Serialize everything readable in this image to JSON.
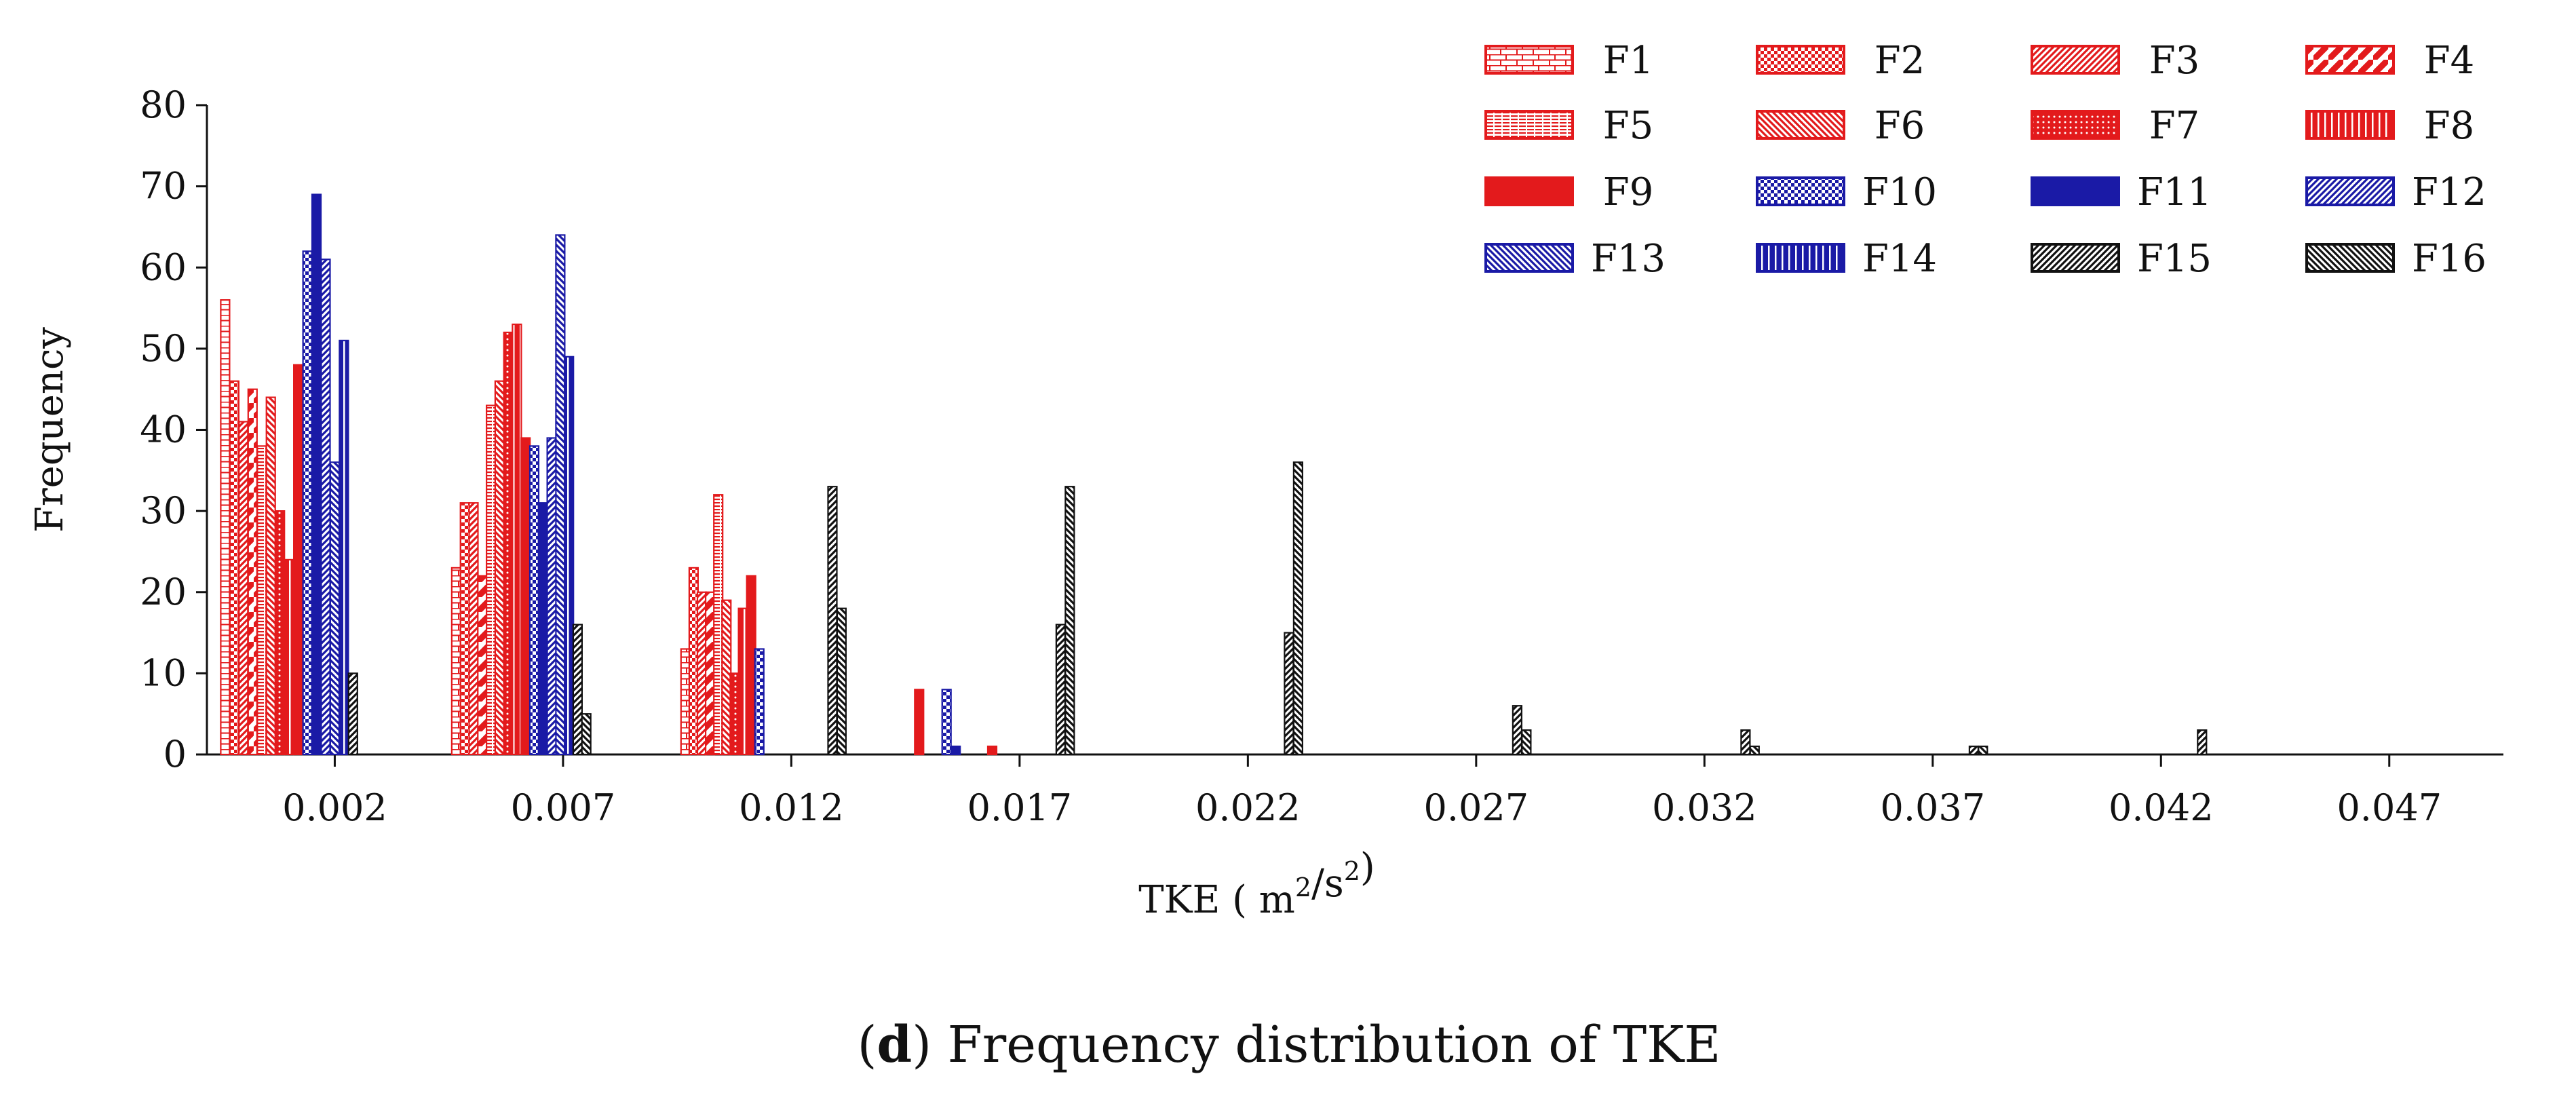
{
  "chart_data": {
    "type": "bar",
    "title": "",
    "caption": {
      "letter": "d",
      "text": "Frequency distribution of TKE"
    },
    "xlabel": {
      "prefix": "TKE ( m",
      "sup1": "2",
      "mid": "/s",
      "sup2": "2",
      "suffix": ")"
    },
    "ylabel": "Frequency",
    "xlim": [
      -0.0008,
      0.0495
    ],
    "ylim": [
      0,
      80
    ],
    "yticks": [
      0,
      10,
      20,
      30,
      40,
      50,
      60,
      70,
      80
    ],
    "xticks": [
      0.002,
      0.007,
      0.012,
      0.017,
      0.022,
      0.027,
      0.032,
      0.037,
      0.042,
      0.047
    ],
    "xtick_labels": [
      "0.002",
      "0.007",
      "0.012",
      "0.017",
      "0.022",
      "0.027",
      "0.032",
      "0.037",
      "0.042",
      "0.047"
    ],
    "legend": {
      "placement": "top-right",
      "columns": 4
    },
    "colors": {
      "red": "#e31a1c",
      "blue": "#1a1aa6",
      "black": "#111111"
    },
    "series": [
      {
        "name": "F1",
        "color": "red",
        "pattern": "brick",
        "x": [
          -0.0004,
          0.00466,
          0.00968
        ],
        "values": [
          56,
          23,
          13
        ]
      },
      {
        "name": "F2",
        "color": "red",
        "pattern": "checker",
        "x": [
          -0.0002,
          0.00485,
          0.00986
        ],
        "values": [
          46,
          31,
          23
        ]
      },
      {
        "name": "F3",
        "color": "red",
        "pattern": "diagfine",
        "x": [
          0.0,
          0.00504,
          0.01004
        ],
        "values": [
          41,
          31,
          20
        ]
      },
      {
        "name": "F4",
        "color": "red",
        "pattern": "diagwide",
        "x": [
          0.0002,
          0.00523,
          0.01022
        ],
        "values": [
          45,
          22,
          20
        ]
      },
      {
        "name": "F5",
        "color": "red",
        "pattern": "grid",
        "x": [
          0.0004,
          0.00542,
          0.0104
        ],
        "values": [
          38,
          43,
          32
        ]
      },
      {
        "name": "F6",
        "color": "red",
        "pattern": "backdiag",
        "x": [
          0.0006,
          0.00561,
          0.01058
        ],
        "values": [
          44,
          46,
          19
        ]
      },
      {
        "name": "F7",
        "color": "red",
        "pattern": "dots",
        "x": [
          0.0008,
          0.0058,
          0.01076
        ],
        "values": [
          30,
          52,
          10
        ]
      },
      {
        "name": "F8",
        "color": "red",
        "pattern": "vstripes",
        "x": [
          0.001,
          0.00599,
          0.01094
        ],
        "values": [
          24,
          53,
          18
        ]
      },
      {
        "name": "F9",
        "color": "red",
        "pattern": "hstripes",
        "x": [
          0.0012,
          0.00618,
          0.01112,
          0.0148,
          0.0164
        ],
        "values": [
          48,
          39,
          22,
          8,
          1
        ]
      },
      {
        "name": "F10",
        "color": "blue",
        "pattern": "checker",
        "x": [
          0.0014,
          0.00637,
          0.0113,
          0.0154
        ],
        "values": [
          62,
          38,
          13,
          8
        ]
      },
      {
        "name": "F11",
        "color": "blue",
        "pattern": "hstripes",
        "x": [
          0.0016,
          0.00656,
          0.0156
        ],
        "values": [
          69,
          31,
          1
        ]
      },
      {
        "name": "F12",
        "color": "blue",
        "pattern": "diagfine",
        "x": [
          0.0018,
          0.00675
        ],
        "values": [
          61,
          39
        ]
      },
      {
        "name": "F13",
        "color": "blue",
        "pattern": "backdiag",
        "x": [
          0.002,
          0.00694
        ],
        "values": [
          36,
          64
        ]
      },
      {
        "name": "F14",
        "color": "blue",
        "pattern": "vstripes",
        "x": [
          0.0022,
          0.00713
        ],
        "values": [
          51,
          49
        ]
      },
      {
        "name": "F15",
        "color": "black",
        "pattern": "diagfine",
        "x": [
          0.0024,
          0.00732,
          0.0129,
          0.0179,
          0.0229,
          0.0279,
          0.0329,
          0.0379,
          0.0429
        ],
        "values": [
          10,
          16,
          33,
          16,
          15,
          6,
          3,
          1,
          3
        ]
      },
      {
        "name": "F16",
        "color": "black",
        "pattern": "backdiag",
        "x": [
          0.00751,
          0.0131,
          0.0181,
          0.0231,
          0.0281,
          0.0331,
          0.0381
        ],
        "values": [
          5,
          18,
          33,
          36,
          3,
          1,
          1
        ]
      }
    ]
  }
}
